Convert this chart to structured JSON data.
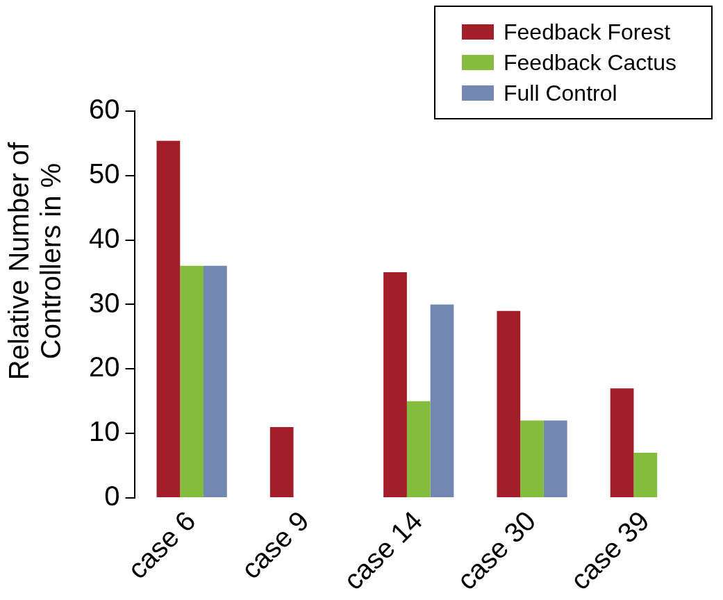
{
  "chart_data": {
    "type": "bar",
    "ylabel": "Relative Number of Controllers in %",
    "categories": [
      "case 6",
      "case 9",
      "case 14",
      "case 30",
      "case 39"
    ],
    "series": [
      {
        "name": "Feedback Forest",
        "color": "#a21e29",
        "values": [
          55.4,
          11,
          35,
          29,
          17
        ]
      },
      {
        "name": "Feedback Cactus",
        "color": "#84bd3d",
        "values": [
          36,
          0,
          15,
          12,
          7
        ]
      },
      {
        "name": "Full Control",
        "color": "#7287b2",
        "values": [
          36,
          0,
          30,
          12,
          0
        ]
      }
    ],
    "ylim": [
      0,
      60
    ],
    "yticks": [
      0,
      10,
      20,
      30,
      40,
      50,
      60
    ],
    "grid": false,
    "legend": "top right"
  }
}
